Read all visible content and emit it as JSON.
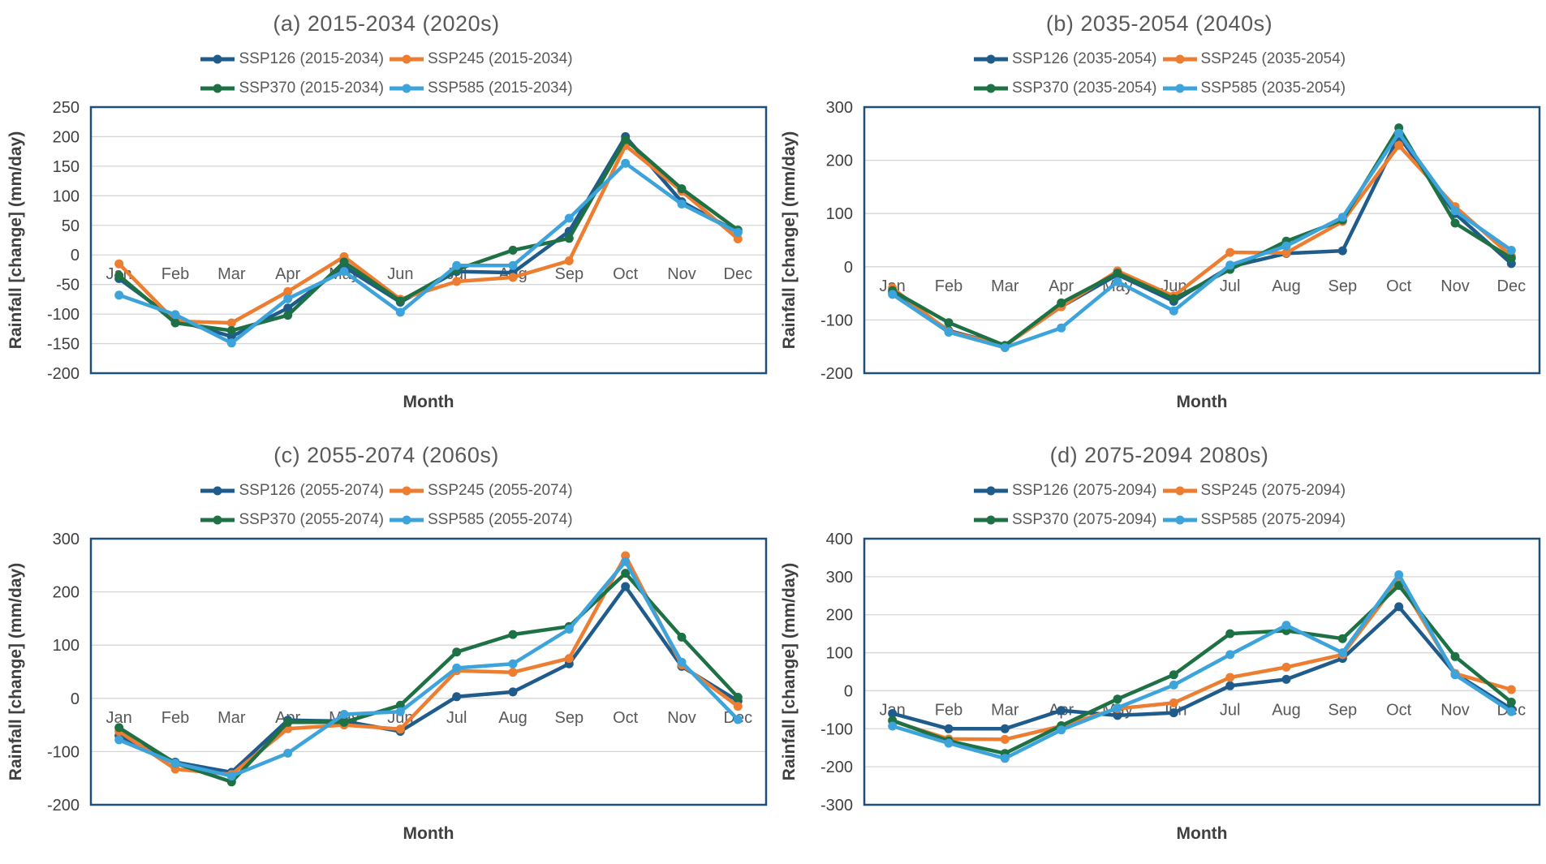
{
  "figure": {
    "y_axis_title": "Rainfall [change] (mm/day)",
    "x_axis_title": "Month",
    "months": [
      "Jan",
      "Feb",
      "Mar",
      "Apr",
      "May",
      "Jun",
      "Jul",
      "Aug",
      "Sep",
      "Oct",
      "Nov",
      "Dec"
    ],
    "colors": {
      "ssp126": "#1F5C8B",
      "ssp245": "#ED7D31",
      "ssp370": "#1E7145",
      "ssp585": "#3DA3DB",
      "plot_border": "#1F4E79",
      "gridline": "#D6D6D6",
      "title_text": "#595959",
      "axis_text": "#404040"
    }
  },
  "chart_data": [
    {
      "type": "line",
      "panel": "a",
      "title": "(a) 2015-2034 (2020s)",
      "xlabel": "Month",
      "ylabel": "Rainfall [change] (mm/day)",
      "ylim": [
        -200,
        250
      ],
      "ytick_step": 50,
      "grid": true,
      "legend_position": "top",
      "categories": [
        "Jan",
        "Feb",
        "Mar",
        "Apr",
        "May",
        "Jun",
        "Jul",
        "Aug",
        "Sep",
        "Oct",
        "Nov",
        "Dec"
      ],
      "series": [
        {
          "name": "SSP126 (2015-2034)",
          "color_key": "ssp126",
          "values": [
            -40,
            -110,
            -138,
            -90,
            -20,
            -80,
            -28,
            -30,
            40,
            200,
            90,
            38
          ]
        },
        {
          "name": "SSP245 (2015-2034)",
          "color_key": "ssp245",
          "values": [
            -15,
            -112,
            -115,
            -62,
            -3,
            -75,
            -45,
            -38,
            -10,
            185,
            108,
            27
          ]
        },
        {
          "name": "SSP370 (2015-2034)",
          "color_key": "ssp370",
          "values": [
            -35,
            -115,
            -128,
            -102,
            -12,
            -78,
            -25,
            8,
            28,
            195,
            112,
            42
          ]
        },
        {
          "name": "SSP585 (2015-2034)",
          "color_key": "ssp585",
          "values": [
            -68,
            -101,
            -149,
            -74,
            -28,
            -97,
            -18,
            -18,
            62,
            155,
            86,
            38
          ]
        }
      ]
    },
    {
      "type": "line",
      "panel": "b",
      "title": "(b) 2035-2054 (2040s)",
      "xlabel": "Month",
      "ylabel": "Rainfall [change] (mm/day)",
      "ylim": [
        -200,
        300
      ],
      "ytick_step": 100,
      "grid": true,
      "legend_position": "top",
      "categories": [
        "Jan",
        "Feb",
        "Mar",
        "Apr",
        "May",
        "Jun",
        "Jul",
        "Aug",
        "Sep",
        "Oct",
        "Nov",
        "Dec"
      ],
      "series": [
        {
          "name": "SSP126 (2035-2054)",
          "color_key": "ssp126",
          "values": [
            -48,
            -120,
            -148,
            -75,
            -15,
            -65,
            0,
            25,
            30,
            245,
            100,
            6
          ]
        },
        {
          "name": "SSP245 (2035-2054)",
          "color_key": "ssp245",
          "values": [
            -40,
            -122,
            -148,
            -75,
            -8,
            -55,
            27,
            26,
            85,
            228,
            113,
            20
          ]
        },
        {
          "name": "SSP370 (2035-2054)",
          "color_key": "ssp370",
          "values": [
            -45,
            -105,
            -148,
            -68,
            -12,
            -60,
            -5,
            48,
            88,
            261,
            82,
            16
          ]
        },
        {
          "name": "SSP585 (2035-2054)",
          "color_key": "ssp585",
          "values": [
            -52,
            -123,
            -152,
            -115,
            -28,
            -83,
            3,
            39,
            93,
            251,
            105,
            31
          ]
        }
      ]
    },
    {
      "type": "line",
      "panel": "c",
      "title": "(c) 2055-2074 (2060s)",
      "xlabel": "Month",
      "ylabel": "Rainfall [change] (mm/day)",
      "ylim": [
        -200,
        300
      ],
      "ytick_step": 100,
      "grid": true,
      "legend_position": "top",
      "categories": [
        "Jan",
        "Feb",
        "Mar",
        "Apr",
        "May",
        "Jun",
        "Jul",
        "Aug",
        "Sep",
        "Oct",
        "Nov",
        "Dec"
      ],
      "series": [
        {
          "name": "SSP126 (2055-2074)",
          "color_key": "ssp126",
          "values": [
            -70,
            -120,
            -139,
            -41,
            -43,
            -62,
            3,
            12,
            65,
            210,
            60,
            -5
          ]
        },
        {
          "name": "SSP245 (2055-2074)",
          "color_key": "ssp245",
          "values": [
            -62,
            -133,
            -143,
            -57,
            -50,
            -58,
            52,
            49,
            75,
            268,
            63,
            -15
          ]
        },
        {
          "name": "SSP370 (2055-2074)",
          "color_key": "ssp370",
          "values": [
            -55,
            -122,
            -157,
            -45,
            -45,
            -13,
            87,
            120,
            135,
            235,
            115,
            2
          ]
        },
        {
          "name": "SSP585 (2055-2074)",
          "color_key": "ssp585",
          "values": [
            -78,
            -122,
            -146,
            -103,
            -30,
            -25,
            57,
            65,
            130,
            257,
            68,
            -40
          ]
        }
      ]
    },
    {
      "type": "line",
      "panel": "d",
      "title": "(d) 2075-2094 2080s)",
      "xlabel": "Month",
      "ylabel": "Rainfall [change] (mm/day)",
      "ylim": [
        -300,
        400
      ],
      "ytick_step": 100,
      "grid": true,
      "legend_position": "top",
      "categories": [
        "Jan",
        "Feb",
        "Mar",
        "Apr",
        "May",
        "Jun",
        "Jul",
        "Aug",
        "Sep",
        "Oct",
        "Nov",
        "Dec"
      ],
      "series": [
        {
          "name": "SSP126 (2075-2094)",
          "color_key": "ssp126",
          "values": [
            -60,
            -100,
            -100,
            -52,
            -65,
            -58,
            13,
            30,
            85,
            221,
            45,
            -48
          ]
        },
        {
          "name": "SSP245 (2075-2094)",
          "color_key": "ssp245",
          "values": [
            -80,
            -127,
            -128,
            -93,
            -47,
            -32,
            35,
            62,
            95,
            290,
            45,
            3
          ]
        },
        {
          "name": "SSP370 (2075-2094)",
          "color_key": "ssp370",
          "values": [
            -78,
            -132,
            -165,
            -92,
            -22,
            42,
            150,
            158,
            137,
            277,
            90,
            -30
          ]
        },
        {
          "name": "SSP585 (2075-2094)",
          "color_key": "ssp585",
          "values": [
            -93,
            -138,
            -178,
            -103,
            -45,
            15,
            95,
            172,
            100,
            305,
            42,
            -55
          ]
        }
      ]
    }
  ]
}
